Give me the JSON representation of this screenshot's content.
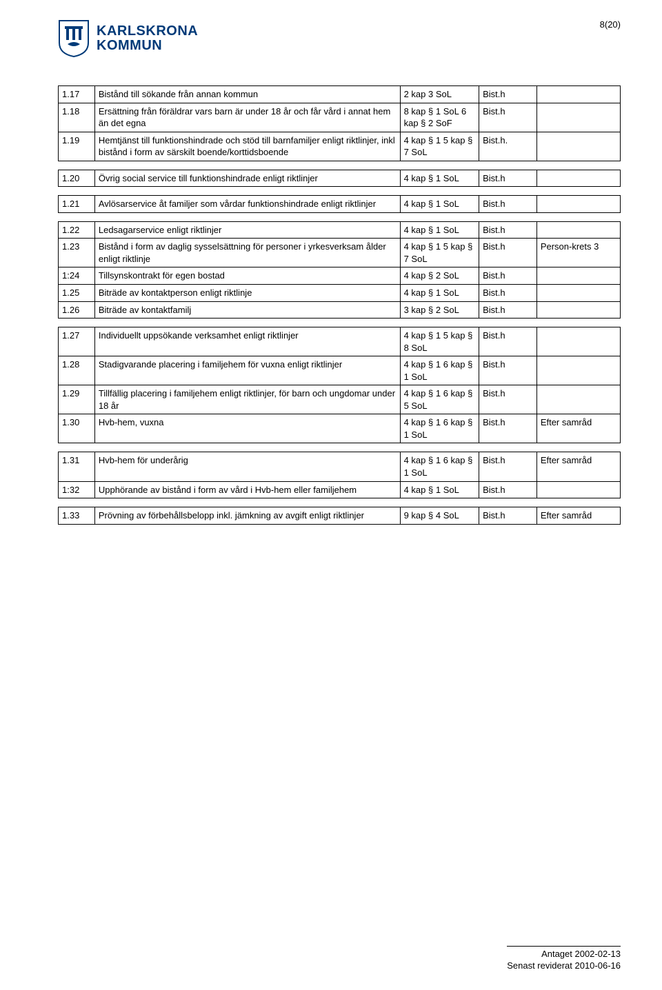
{
  "page_number": "8(20)",
  "logo": {
    "line1": "KARLSKRONA",
    "line2": "KOMMUN",
    "color": "#003a78"
  },
  "columns": {
    "c0": 48,
    "c1": 402,
    "c2": 104,
    "c3": 76,
    "c4": 110
  },
  "groups": [
    {
      "rows": [
        {
          "num": "1.17",
          "desc": "Bistånd till sökande från annan kommun",
          "ref": "2 kap 3 SoL",
          "auth": "Bist.h",
          "note": ""
        },
        {
          "num": "1.18",
          "desc": "Ersättning från föräldrar vars barn är under 18 år och får vård i annat hem än det egna",
          "ref": "8 kap § 1 SoL 6 kap § 2 SoF",
          "auth": "Bist.h",
          "note": ""
        },
        {
          "num": "1.19",
          "desc": "Hemtjänst till funktionshindrade och stöd till barnfamiljer enligt riktlinjer, inkl bistånd i form av särskilt boende/korttidsboende",
          "ref": "4 kap § 1 5 kap § 7 SoL",
          "auth": "Bist.h.",
          "note": ""
        }
      ]
    },
    {
      "rows": [
        {
          "num": "1.20",
          "desc": "Övrig social service till funktionshindrade enligt riktlinjer",
          "ref": "4 kap § 1 SoL",
          "auth": "Bist.h",
          "note": ""
        }
      ]
    },
    {
      "rows": [
        {
          "num": "1.21",
          "desc": "Avlösarservice åt familjer som vårdar funktionshindrade enligt riktlinjer",
          "ref": "4 kap § 1 SoL",
          "auth": "Bist.h",
          "note": ""
        }
      ]
    },
    {
      "rows": [
        {
          "num": "1.22",
          "desc": "Ledsagarservice enligt riktlinjer",
          "ref": "4 kap § 1 SoL",
          "auth": "Bist.h",
          "note": ""
        },
        {
          "num": "1.23",
          "desc": "Bistånd i form av daglig sysselsättning för personer i yrkesverksam ålder enligt riktlinje",
          "ref": "4 kap § 1 5 kap § 7 SoL",
          "auth": "Bist.h",
          "note": "Person-krets 3"
        },
        {
          "num": "1:24",
          "desc": "Tillsynskontrakt för egen bostad",
          "ref": "4 kap § 2 SoL",
          "auth": "Bist.h",
          "note": ""
        },
        {
          "num": "1.25",
          "desc": "Biträde av kontaktperson enligt riktlinje",
          "ref": "4 kap § 1 SoL",
          "auth": "Bist.h",
          "note": ""
        },
        {
          "num": "1.26",
          "desc": "Biträde av kontaktfamilj",
          "ref": "3 kap § 2 SoL",
          "auth": "Bist.h",
          "note": ""
        }
      ]
    },
    {
      "rows": [
        {
          "num": "1.27",
          "desc": "Individuellt uppsökande verksamhet enligt riktlinjer",
          "ref": "4 kap § 1 5 kap § 8 SoL",
          "auth": "Bist.h",
          "note": ""
        },
        {
          "num": "1.28",
          "desc": "Stadigvarande placering i familjehem för vuxna enligt riktlinjer",
          "ref": "4 kap § 1 6 kap § 1 SoL",
          "auth": "Bist.h",
          "note": ""
        },
        {
          "num": "1.29",
          "desc": "Tillfällig placering i familjehem enligt riktlinjer, för barn och ungdomar under 18 år",
          "ref": "4 kap § 1 6 kap § 5 SoL",
          "auth": "Bist.h",
          "note": ""
        },
        {
          "num": "1.30",
          "desc": "Hvb-hem, vuxna",
          "ref": "4 kap § 1 6 kap § 1 SoL",
          "auth": "Bist.h",
          "note": "Efter samråd"
        }
      ]
    },
    {
      "rows": [
        {
          "num": "1.31",
          "desc": "Hvb-hem för underårig",
          "ref": "4 kap § 1 6 kap § 1 SoL",
          "auth": "Bist.h",
          "note": "Efter samråd"
        },
        {
          "num": "1:32",
          "desc": "Upphörande av bistånd i form av vård i Hvb-hem eller familjehem",
          "ref": "4 kap § 1 SoL",
          "auth": "Bist.h",
          "note": ""
        }
      ]
    },
    {
      "rows": [
        {
          "num": "1.33",
          "desc": "Prövning av förbehållsbelopp inkl. jämkning av avgift enligt riktlinjer",
          "ref": "9 kap § 4 SoL",
          "auth": "Bist.h",
          "note": "Efter samråd"
        }
      ]
    }
  ],
  "footer": {
    "line1": "Antaget 2002-02-13",
    "line2": "Senast reviderat 2010-06-16"
  }
}
